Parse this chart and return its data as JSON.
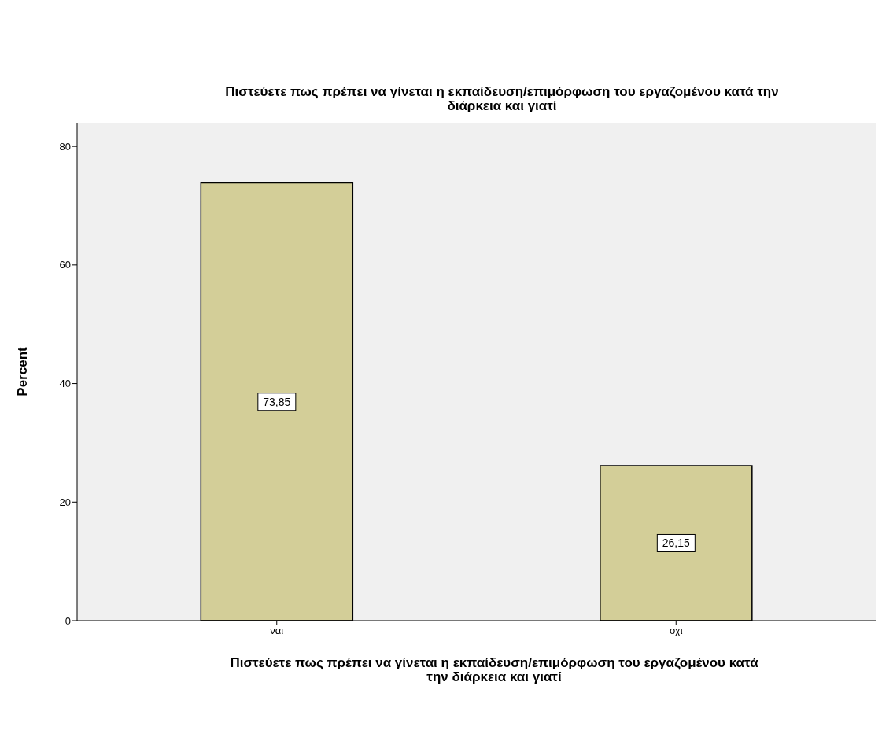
{
  "chart_data": {
    "type": "bar",
    "title": "Πιστεύετε πως πρέπει να γίνεται η εκπαίδευση/επιμόρφωση του εργαζομένου κατά την διάρκεια και γιατί",
    "xlabel": "Πιστεύετε πως πρέπει να γίνεται η εκπαίδευση/επιμόρφωση του εργαζομένου κατά την διάρκεια και γιατί",
    "ylabel": "Percent",
    "categories": [
      "ναι",
      "οχι"
    ],
    "values": [
      73.85,
      26.15
    ],
    "value_labels": [
      "73,85",
      "26,15"
    ],
    "color": "#d3ce98",
    "ylim": [
      0,
      84
    ],
    "yticks": [
      0,
      20,
      40,
      60,
      80
    ]
  }
}
